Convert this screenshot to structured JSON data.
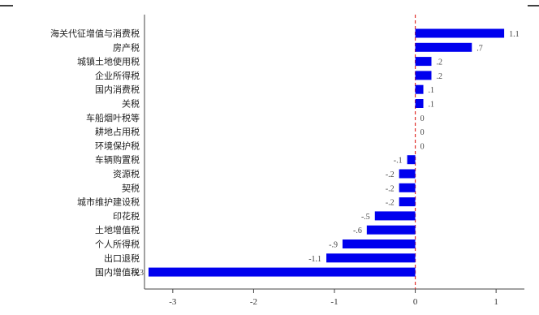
{
  "chart_data": {
    "type": "bar",
    "orientation": "horizontal",
    "categories": [
      "海关代征增值与消费税",
      "房产税",
      "城镇土地使用税",
      "企业所得税",
      "国内消费税",
      "关税",
      "车船烟叶税等",
      "耕地占用税",
      "环境保护税",
      "车辆购置税",
      "资源税",
      "契税",
      "城市维护建设税",
      "印花税",
      "土地增值税",
      "个人所得税",
      "出口退税",
      "国内增值税"
    ],
    "values": [
      1.1,
      0.7,
      0.2,
      0.2,
      0.1,
      0.1,
      0,
      0,
      0,
      -0.1,
      -0.2,
      -0.2,
      -0.2,
      -0.5,
      -0.6,
      -0.9,
      -1.1,
      -3.3
    ],
    "value_labels": [
      "1.1",
      ".7",
      ".2",
      ".2",
      ".1",
      ".1",
      "0",
      "0",
      "0",
      "-.1",
      "-.2",
      "-.2",
      "-.2",
      "-.5",
      "-.6",
      "-.9",
      "-1.1",
      "-3.3"
    ],
    "xlim": [
      -3.35,
      1.35
    ],
    "xticks": [
      -3,
      -2,
      -1,
      0,
      1
    ],
    "xtick_labels": [
      "-3",
      "-2",
      "-1",
      "0",
      "1"
    ],
    "colors": {
      "bar": "#0000ee",
      "zero_line": "#e0302a",
      "axis": "#444444",
      "corner_mark": "#000000"
    },
    "grid": false
  }
}
